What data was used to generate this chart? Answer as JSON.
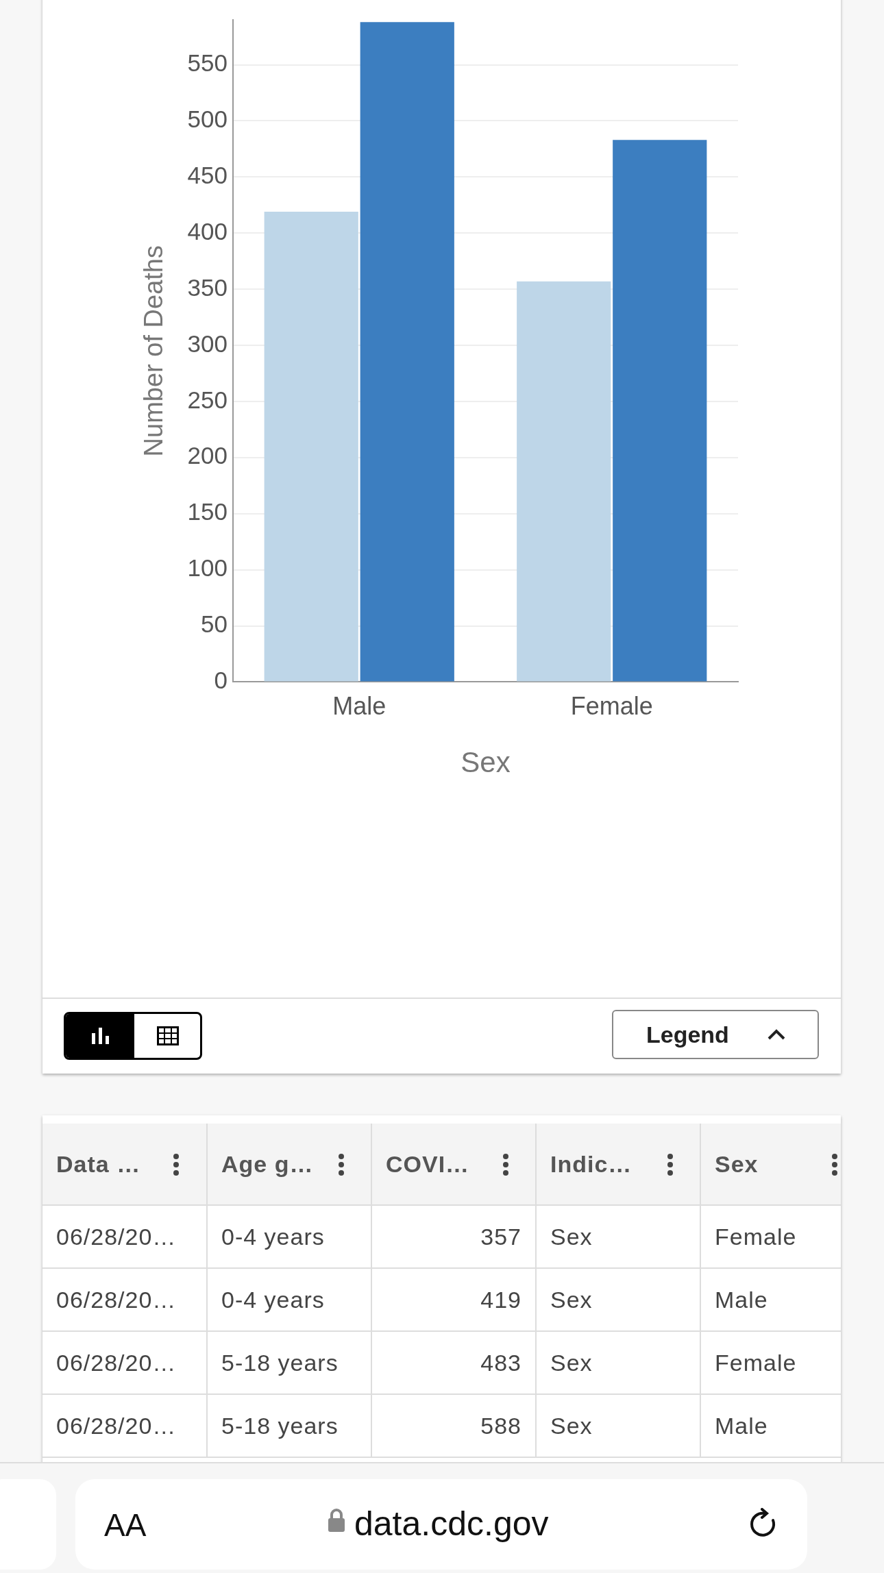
{
  "chart_data": {
    "type": "bar",
    "xlabel": "Sex",
    "ylabel": "Number of Deaths",
    "categories": [
      "Male",
      "Female"
    ],
    "series": [
      {
        "color": "#bed6e8",
        "values": [
          419,
          357
        ]
      },
      {
        "color": "#3c7ec0",
        "values": [
          588,
          483
        ]
      }
    ],
    "ylim": [
      0,
      590
    ],
    "yticks": [
      0,
      50,
      100,
      150,
      200,
      250,
      300,
      350,
      400,
      450,
      500,
      550
    ],
    "grid": "y",
    "legend": false,
    "annotations": [
      "Legend",
      "Data …",
      "Age g…",
      "COVI…",
      "Indic…",
      "Sex",
      "06/28/20…",
      "0-4 years",
      "357",
      "Sex",
      "Female",
      "06/28/20…",
      "0-4 years",
      "419",
      "Sex",
      "Male",
      "06/28/20…",
      "5-18 years",
      "483",
      "Sex",
      "Female",
      "06/28/20…",
      "5-18 years",
      "588",
      "Sex",
      "Male",
      "AA",
      "data.cdc.gov"
    ]
  }
}
